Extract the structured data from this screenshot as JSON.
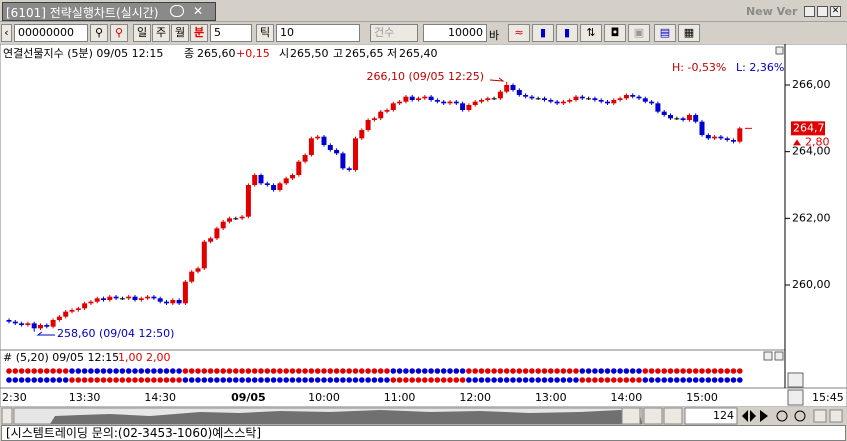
{
  "window": {
    "title": "[6101] 전략실행차트(실시간)",
    "version": "New Ver"
  },
  "toolbar": {
    "code": "00000000",
    "periods": [
      "일",
      "주",
      "월",
      "분"
    ],
    "minute": 5,
    "tick_label": "틱",
    "tick": 10,
    "count_label": "건수",
    "count": 10000,
    "bar_label": "바"
  },
  "chart_data": {
    "type": "candlestick",
    "info": {
      "name": "연결선물지수 (5분) 09/05 12:15",
      "close_label": "종",
      "close": "265,60",
      "change": "+0,15",
      "open_label": "시",
      "open": "265,50",
      "high_label": "고",
      "high": "265,65",
      "low_label": "저",
      "low": "265,40"
    },
    "range_high": "H: -0,53%",
    "range_low": "L: 2,36%",
    "up_color": "#e00000",
    "down_color": "#0000d0",
    "flat_color": "#000000",
    "ylim": [
      258.05,
      267.2
    ],
    "yticks": [
      {
        "value": 260,
        "label": "260,00"
      },
      {
        "value": 262,
        "label": "262,00"
      },
      {
        "value": 264,
        "label": "264,00"
      },
      {
        "value": 266,
        "label": "266,00"
      }
    ],
    "categories": [
      "2:30",
      null,
      null,
      null,
      null,
      null,
      null,
      null,
      null,
      null,
      null,
      null,
      "13:30",
      null,
      null,
      null,
      null,
      null,
      null,
      null,
      null,
      null,
      null,
      null,
      "14:30",
      null,
      null,
      null,
      null,
      null,
      null,
      null,
      null,
      null,
      null,
      null,
      null,
      null,
      "09/05",
      null,
      null,
      null,
      null,
      null,
      null,
      null,
      null,
      null,
      null,
      null,
      "10:00",
      null,
      null,
      null,
      null,
      null,
      null,
      null,
      null,
      null,
      null,
      null,
      "11:00",
      null,
      null,
      null,
      null,
      null,
      null,
      null,
      null,
      null,
      null,
      null,
      "12:00",
      null,
      null,
      null,
      null,
      null,
      null,
      null,
      null,
      null,
      null,
      null,
      "13:00",
      null,
      null,
      null,
      null,
      null,
      null,
      null,
      null,
      null,
      null,
      null,
      "14:00",
      null,
      null,
      null,
      null,
      null,
      null,
      null,
      null,
      null,
      null,
      null,
      "15:00",
      null,
      null,
      null,
      null,
      null,
      null
    ],
    "open": [
      258.95,
      258.9,
      258.85,
      258.8,
      258.85,
      258.7,
      258.8,
      258.75,
      258.95,
      259.05,
      259.2,
      259.25,
      259.3,
      259.45,
      259.5,
      259.6,
      259.55,
      259.65,
      259.6,
      259.6,
      259.65,
      259.55,
      259.6,
      259.65,
      259.6,
      259.5,
      259.45,
      259.55,
      259.45,
      260.1,
      260.4,
      260.5,
      261.3,
      261.4,
      261.7,
      261.9,
      262,
      262,
      262.05,
      263,
      263.3,
      263.05,
      263,
      262.85,
      263.05,
      263.2,
      263.3,
      263.7,
      263.9,
      264.4,
      264.45,
      264.2,
      264.05,
      263.95,
      263.5,
      263.45,
      264.4,
      264.65,
      264.95,
      265,
      265.2,
      265.25,
      265.45,
      265.5,
      265.65,
      265.55,
      265.6,
      265.65,
      265.55,
      265.5,
      265.45,
      265.5,
      265.45,
      265.25,
      265.4,
      265.5,
      265.55,
      265.6,
      265.6,
      265.8,
      266,
      265.85,
      265.7,
      265.65,
      265.6,
      265.6,
      265.55,
      265.5,
      265.45,
      265.5,
      265.55,
      265.65,
      265.6,
      265.6,
      265.55,
      265.5,
      265.45,
      265.55,
      265.6,
      265.7,
      265.65,
      265.6,
      265.5,
      265.45,
      265.2,
      265.1,
      265,
      265,
      264.95,
      265.1,
      264.9,
      264.5,
      264.4,
      264.45,
      264.4,
      264.35,
      264.3
    ],
    "high": [
      259,
      258.95,
      258.9,
      258.9,
      258.9,
      258.85,
      258.85,
      259,
      259.1,
      259.25,
      259.3,
      259.35,
      259.5,
      259.55,
      259.65,
      259.65,
      259.7,
      259.7,
      259.65,
      259.7,
      259.7,
      259.65,
      259.7,
      259.7,
      259.65,
      259.55,
      259.6,
      259.6,
      260.15,
      260.45,
      260.55,
      261.35,
      261.45,
      261.75,
      261.95,
      262.05,
      262.05,
      262.1,
      263.05,
      263.35,
      263.35,
      263.1,
      263.05,
      263.1,
      263.25,
      263.35,
      263.75,
      263.95,
      264.45,
      264.5,
      264.5,
      264.25,
      264.1,
      264,
      263.55,
      264.45,
      264.7,
      265,
      265.05,
      265.25,
      265.3,
      265.5,
      265.55,
      265.7,
      265.7,
      265.65,
      265.7,
      265.7,
      265.6,
      265.55,
      265.55,
      265.55,
      265.5,
      265.45,
      265.55,
      265.6,
      265.65,
      265.65,
      265.85,
      266.1,
      266.05,
      265.9,
      265.75,
      265.7,
      265.65,
      265.65,
      265.6,
      265.55,
      265.55,
      265.6,
      265.7,
      265.7,
      265.65,
      265.65,
      265.6,
      265.55,
      265.6,
      265.65,
      265.75,
      265.75,
      265.7,
      265.65,
      265.55,
      265.5,
      265.25,
      265.15,
      265.05,
      265.05,
      265.15,
      265.15,
      264.95,
      264.55,
      264.5,
      264.5,
      264.45,
      264.4,
      264.75
    ],
    "low": [
      258.85,
      258.8,
      258.75,
      258.75,
      258.6,
      258.65,
      258.7,
      258.7,
      258.9,
      259,
      259.15,
      259.2,
      259.25,
      259.4,
      259.45,
      259.5,
      259.5,
      259.55,
      259.55,
      259.55,
      259.5,
      259.5,
      259.55,
      259.55,
      259.45,
      259.4,
      259.4,
      259.4,
      259.4,
      260.05,
      260.35,
      260.45,
      261.25,
      261.35,
      261.65,
      261.85,
      261.95,
      261.95,
      262,
      262.95,
      263,
      262.95,
      262.8,
      262.8,
      263,
      263.15,
      263.25,
      263.65,
      263.85,
      264.35,
      264.15,
      264,
      263.9,
      263.45,
      263.4,
      263.4,
      264.35,
      264.6,
      264.9,
      264.95,
      265.15,
      265.2,
      265.4,
      265.45,
      265.5,
      265.5,
      265.55,
      265.5,
      265.45,
      265.4,
      265.4,
      265.4,
      265.2,
      265.2,
      265.35,
      265.45,
      265.5,
      265.55,
      265.55,
      265.75,
      265.8,
      265.65,
      265.6,
      265.55,
      265.55,
      265.5,
      265.45,
      265.4,
      265.4,
      265.45,
      265.5,
      265.55,
      265.55,
      265.5,
      265.45,
      265.4,
      265.4,
      265.5,
      265.55,
      265.6,
      265.55,
      265.45,
      265.4,
      265.15,
      265.05,
      264.95,
      264.95,
      264.9,
      264.9,
      264.85,
      264.45,
      264.35,
      264.35,
      264.35,
      264.3,
      264.25,
      264.25
    ],
    "close": [
      258.9,
      258.85,
      258.8,
      258.85,
      258.7,
      258.8,
      258.75,
      258.95,
      259.05,
      259.2,
      259.25,
      259.3,
      259.45,
      259.5,
      259.6,
      259.55,
      259.65,
      259.6,
      259.6,
      259.65,
      259.55,
      259.6,
      259.65,
      259.6,
      259.5,
      259.45,
      259.55,
      259.45,
      260.1,
      260.4,
      260.5,
      261.3,
      261.4,
      261.7,
      261.9,
      262,
      262,
      262.05,
      263,
      263.3,
      263.05,
      263,
      262.85,
      263.05,
      263.2,
      263.3,
      263.7,
      263.9,
      264.4,
      264.45,
      264.2,
      264.05,
      263.95,
      263.5,
      263.45,
      264.4,
      264.65,
      264.95,
      265,
      265.2,
      265.25,
      265.45,
      265.5,
      265.65,
      265.55,
      265.6,
      265.65,
      265.55,
      265.5,
      265.45,
      265.5,
      265.45,
      265.25,
      265.4,
      265.5,
      265.55,
      265.6,
      265.6,
      265.8,
      266,
      265.85,
      265.7,
      265.65,
      265.6,
      265.6,
      265.55,
      265.5,
      265.45,
      265.5,
      265.55,
      265.65,
      265.6,
      265.6,
      265.55,
      265.5,
      265.45,
      265.55,
      265.6,
      265.7,
      265.65,
      265.6,
      265.5,
      265.45,
      265.2,
      265.1,
      265,
      265,
      264.95,
      265.1,
      264.9,
      264.5,
      264.4,
      264.45,
      264.4,
      264.35,
      264.3,
      264.7
    ],
    "last_price": {
      "value": 264.7,
      "label": "264,70"
    },
    "change": "2,80",
    "annotations": [
      {
        "text": "266,10 (09/05 12:25)",
        "color": "#c00000"
      },
      {
        "text": "258,60 (09/04 12:50)",
        "color": "#0000c0"
      }
    ],
    "time_corner": "15:45",
    "indicator": {
      "title": "# (5,20) 09/05 12:15",
      "params": "1,00 2,00",
      "top": [
        1,
        1,
        1,
        1,
        1,
        1,
        1,
        1,
        1,
        1,
        0,
        0,
        0,
        0,
        0,
        0,
        0,
        0,
        0,
        0,
        0,
        0,
        0,
        0,
        0,
        0,
        0,
        0,
        1,
        1,
        1,
        1,
        1,
        1,
        1,
        1,
        1,
        1,
        1,
        1,
        1,
        1,
        1,
        1,
        1,
        1,
        1,
        1,
        1,
        1,
        1,
        1,
        1,
        1,
        1,
        1,
        1,
        1,
        1,
        1,
        1,
        0,
        0,
        0,
        0,
        0,
        0,
        0,
        0,
        0,
        0,
        0,
        0,
        1,
        1,
        1,
        1,
        1,
        1,
        1,
        1,
        1,
        1,
        1,
        1,
        1,
        1,
        1,
        1,
        1,
        1,
        0,
        0,
        0,
        0,
        0,
        0,
        0,
        0,
        0,
        0,
        1,
        1,
        1,
        1,
        1,
        1,
        1,
        1,
        1,
        1,
        1,
        1,
        1,
        1,
        1,
        1
      ],
      "bottom": [
        0,
        0,
        0,
        0,
        0,
        0,
        0,
        0,
        0,
        0,
        1,
        1,
        1,
        1,
        1,
        1,
        1,
        1,
        1,
        1,
        1,
        1,
        1,
        1,
        1,
        1,
        1,
        1,
        0,
        0,
        0,
        0,
        0,
        0,
        0,
        0,
        0,
        0,
        0,
        0,
        0,
        0,
        0,
        0,
        0,
        0,
        0,
        0,
        0,
        0,
        0,
        0,
        0,
        0,
        0,
        0,
        0,
        0,
        0,
        0,
        0,
        1,
        1,
        1,
        1,
        1,
        1,
        1,
        1,
        1,
        1,
        1,
        1,
        0,
        0,
        0,
        0,
        0,
        0,
        0,
        0,
        0,
        0,
        0,
        0,
        0,
        0,
        0,
        0,
        0,
        0,
        1,
        1,
        1,
        1,
        1,
        1,
        1,
        1,
        1,
        1,
        0,
        0,
        0,
        0,
        0,
        0,
        0,
        0,
        0,
        0,
        0,
        0,
        0,
        0,
        0,
        0
      ]
    },
    "scroll_count": 124
  },
  "status": "[시스템트레이딩 문의:(02-3453-1060)예스스탁]"
}
